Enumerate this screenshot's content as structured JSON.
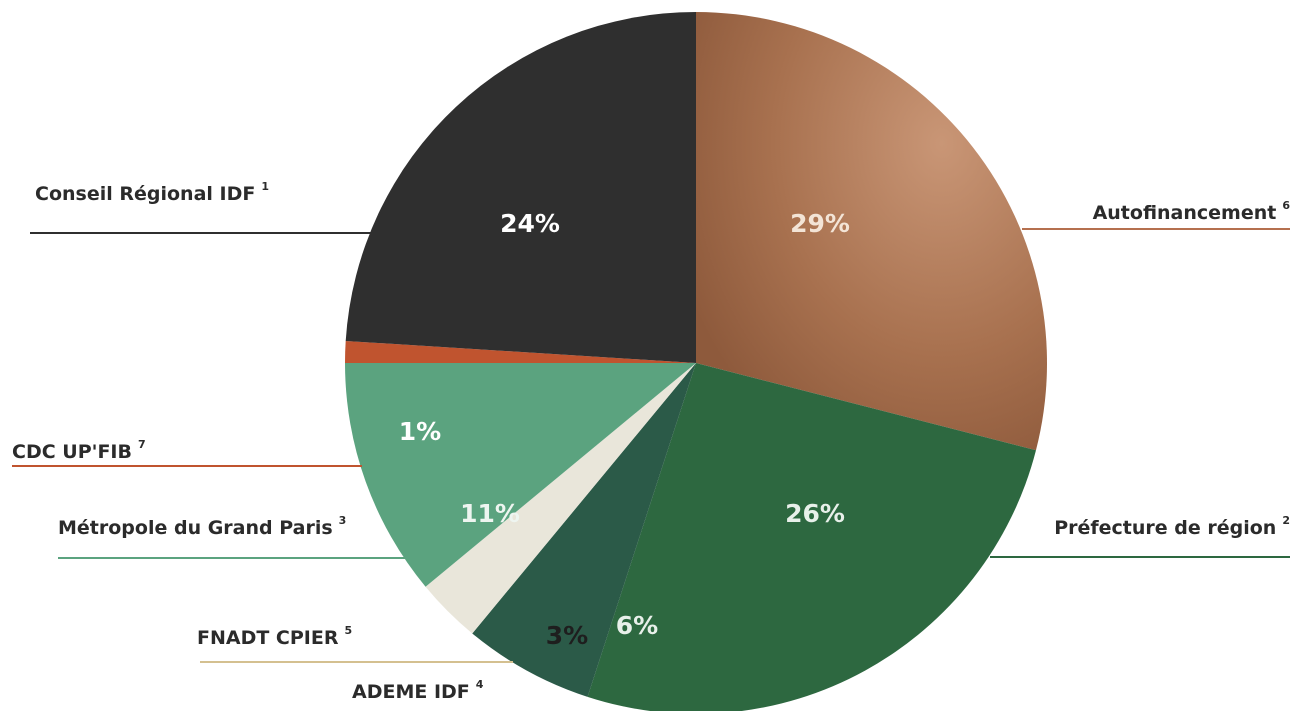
{
  "chart_data": {
    "type": "pie",
    "categories": [
      "Autofinancement",
      "Préfecture de région",
      "ADEME IDF",
      "FNADT CPIER",
      "Métropole du Grand Paris",
      "CDC UP'FIB",
      "Conseil Régional IDF"
    ],
    "notes": [
      "6",
      "2",
      "4",
      "5",
      "3",
      "7",
      "1"
    ],
    "values": [
      29,
      26,
      6,
      3,
      11,
      1,
      24
    ],
    "value_labels": [
      "29%",
      "26%",
      "6%",
      "3%",
      "11%",
      "1%",
      "24%"
    ],
    "colors": [
      "#b07b5a",
      "#2d6840",
      "#2b5a48",
      "#e9e6da",
      "#5ba37f",
      "#c0542f",
      "#2f2f2f"
    ]
  }
}
